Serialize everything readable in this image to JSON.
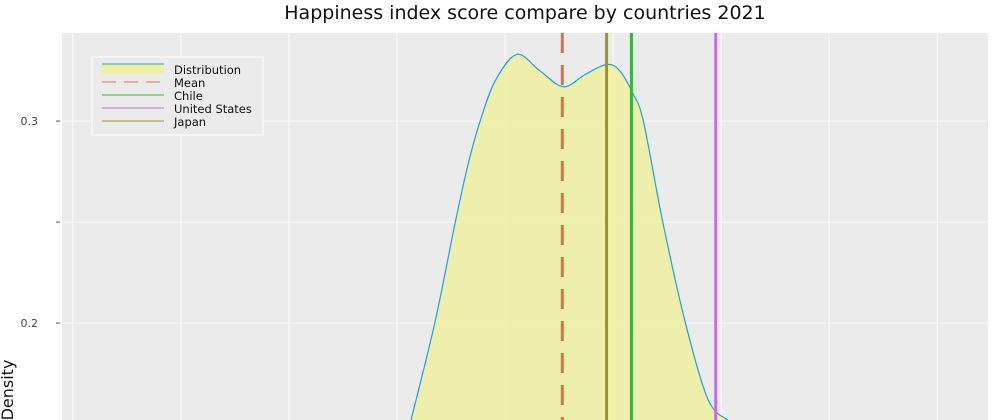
{
  "chart_data": {
    "type": "area",
    "title": "Happiness index score compare by countries 2021",
    "xlabel": "",
    "ylabel": "Density",
    "xlim": [
      0.9,
      9.47
    ],
    "ylim": [
      0.152,
      0.3436
    ],
    "x_gridlines": [
      1,
      2,
      3,
      4,
      5,
      6,
      7,
      8,
      9
    ],
    "y_ticks": [
      {
        "value": 0.2,
        "label": "0.2"
      },
      {
        "value": 0.25,
        "label": ""
      },
      {
        "value": 0.3,
        "label": "0.3"
      }
    ],
    "grid": true,
    "legend_placement": "top-left",
    "distribution": {
      "name": "Distribution",
      "line_color": "#1ea0f0",
      "fill_color": "#f0f0a5",
      "x": [
        4.13,
        4.35,
        4.54,
        4.66,
        4.77,
        4.91,
        5.11,
        5.32,
        5.54,
        5.74,
        5.94,
        6.06,
        6.18,
        6.28,
        6.46,
        6.67,
        6.88,
        7.06
      ],
      "y": [
        0.152,
        0.2,
        0.25,
        0.279,
        0.3,
        0.32,
        0.333,
        0.325,
        0.317,
        0.323,
        0.328,
        0.325,
        0.314,
        0.3,
        0.25,
        0.2,
        0.162,
        0.152
      ]
    },
    "vlines": [
      {
        "name": "Mean",
        "x": 5.53,
        "color": "#e07040",
        "dashed": true
      },
      {
        "name": "Chile",
        "x": 6.17,
        "color": "#3cb040",
        "dashed": false
      },
      {
        "name": "United States",
        "x": 6.95,
        "color": "#c070e0",
        "dashed": false
      },
      {
        "name": "Japan",
        "x": 5.94,
        "color": "#a89020",
        "dashed": false
      }
    ],
    "background_color": "#ebebeb"
  }
}
